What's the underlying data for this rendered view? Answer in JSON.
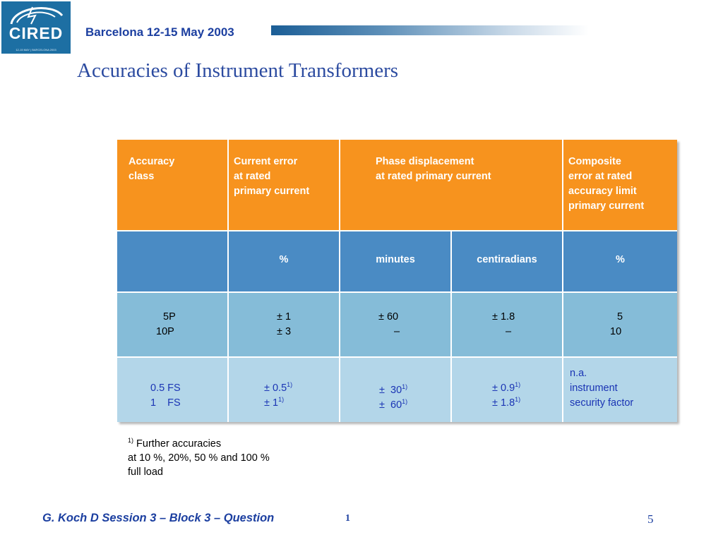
{
  "logo": {
    "text": "CIRED",
    "subtext": "12-15 MAY | BARCELONA 2003",
    "icon": "lightning-globe-icon"
  },
  "header": {
    "date_location": "Barcelona  12-15 May 2003"
  },
  "title": "Accuracies of Instrument Transformers",
  "table": {
    "headers": {
      "accuracy_class": [
        "Accuracy",
        "class"
      ],
      "current_error": [
        "Current error",
        "at rated",
        "primary current"
      ],
      "phase_displacement": [
        "Phase displacement",
        "at rated primary current"
      ],
      "composite_error": [
        "Composite",
        "error at rated",
        "accuracy limit",
        "primary current"
      ]
    },
    "units": {
      "current_error": "%",
      "phase_minutes": "minutes",
      "phase_centiradians": "centiradians",
      "composite_error": "%"
    },
    "rows": [
      {
        "accuracy_class": [
          "5P",
          "10P"
        ],
        "current_error": [
          "± 1",
          "± 3"
        ],
        "phase_minutes": [
          "± 60",
          "–"
        ],
        "phase_centiradians": [
          "± 1.8",
          "–"
        ],
        "composite_error": [
          "5",
          "10"
        ]
      },
      {
        "accuracy_class": [
          "0.5 FS",
          "1    FS"
        ],
        "current_error": [
          "± 0.5",
          "± 1"
        ],
        "phase_minutes": [
          "±  30",
          "±  60"
        ],
        "phase_centiradians": [
          "± 0.9",
          "± 1.8"
        ],
        "composite_error": [
          "n.a.",
          "instrument",
          "security factor"
        ],
        "footnote_marker": "1)"
      }
    ]
  },
  "footnote": {
    "marker": "1)",
    "lines": [
      "Further accuracies",
      "at 10 %, 20%, 50 % and 100 %",
      "full  load"
    ]
  },
  "footer": {
    "text": "G. Koch  D  Session 3   – Block 3 – Question",
    "small": "1",
    "page_number": "5"
  },
  "colors": {
    "header_orange": "#f7931e",
    "unit_blue": "#4a8bc4",
    "row_light_blue": "#85bcd8",
    "row_pale_blue": "#b3d6e9",
    "title_blue": "#2c4ba0"
  }
}
